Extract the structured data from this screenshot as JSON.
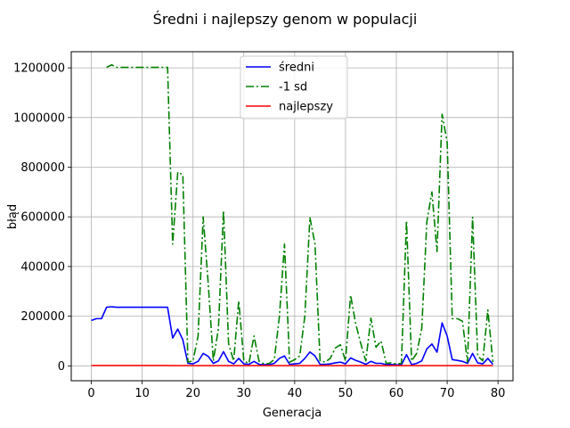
{
  "chart_data": {
    "type": "line",
    "title": "Średni i najlepszy genom w populacji",
    "xlabel": "Generacja",
    "ylabel": "błąd",
    "xlim": [
      -3.95,
      82.95
    ],
    "ylim": [
      -60000,
      1265000
    ],
    "xticks": [
      0,
      10,
      20,
      30,
      40,
      50,
      60,
      70,
      80
    ],
    "yticks": [
      0,
      200000,
      400000,
      600000,
      800000,
      1000000,
      1200000
    ],
    "grid": true,
    "legend_position": "top-center",
    "x": [
      0,
      1,
      2,
      3,
      4,
      5,
      6,
      7,
      8,
      9,
      10,
      11,
      12,
      13,
      14,
      15,
      16,
      17,
      18,
      19,
      20,
      21,
      22,
      23,
      24,
      25,
      26,
      27,
      28,
      29,
      30,
      31,
      32,
      33,
      34,
      35,
      36,
      37,
      38,
      39,
      40,
      41,
      42,
      43,
      44,
      45,
      46,
      47,
      48,
      49,
      50,
      51,
      52,
      53,
      54,
      55,
      56,
      57,
      58,
      59,
      60,
      61,
      62,
      63,
      64,
      65,
      66,
      67,
      68,
      69,
      70,
      71,
      72,
      73,
      74,
      75,
      76,
      77,
      78,
      79
    ],
    "series": [
      {
        "name": "średni",
        "color": "#0000ff",
        "style": "solid",
        "values": [
          183000,
          190000,
          190000,
          236000,
          238000,
          236000,
          236000,
          236000,
          236000,
          236000,
          236000,
          236000,
          236000,
          236000,
          236000,
          236000,
          112000,
          148000,
          105000,
          10000,
          8000,
          18000,
          50000,
          38000,
          10000,
          20000,
          57000,
          18000,
          8000,
          30000,
          8000,
          6000,
          18000,
          6000,
          5000,
          5000,
          10000,
          30000,
          40000,
          6000,
          8000,
          10000,
          30000,
          56000,
          40000,
          6000,
          6000,
          8000,
          12000,
          15000,
          8000,
          32000,
          22000,
          15000,
          6000,
          18000,
          10000,
          10000,
          5000,
          6000,
          4000,
          4000,
          45000,
          5000,
          10000,
          20000,
          68000,
          88000,
          55000,
          173000,
          120000,
          25000,
          22000,
          18000,
          10000,
          50000,
          12000,
          8000,
          30000,
          6000
        ]
      },
      {
        "name": "-1 sd",
        "color": "#008000",
        "style": "dashdot",
        "values": [
          null,
          null,
          null,
          1202000,
          1212000,
          1202000,
          1202000,
          1202000,
          1202000,
          1202000,
          1202000,
          1202000,
          1202000,
          1202000,
          1202000,
          1202000,
          490000,
          780000,
          770000,
          15000,
          20000,
          120000,
          600000,
          330000,
          20000,
          150000,
          625000,
          90000,
          20000,
          262000,
          20000,
          10000,
          120000,
          18000,
          8000,
          10000,
          25000,
          200000,
          490000,
          15000,
          25000,
          40000,
          200000,
          598000,
          490000,
          20000,
          15000,
          30000,
          72000,
          85000,
          20000,
          285000,
          170000,
          90000,
          20000,
          192000,
          75000,
          100000,
          10000,
          12000,
          8000,
          10000,
          585000,
          20000,
          50000,
          150000,
          580000,
          700000,
          460000,
          1013000,
          900000,
          190000,
          190000,
          180000,
          15000,
          598000,
          40000,
          20000,
          225000,
          15000
        ]
      },
      {
        "name": "najlepszy",
        "color": "#ff0000",
        "style": "solid",
        "values": [
          1500,
          1500,
          1500,
          1500,
          1500,
          1500,
          1500,
          1500,
          1500,
          1500,
          1500,
          1500,
          1500,
          1500,
          1500,
          1500,
          1000,
          1000,
          1000,
          1000,
          1000,
          1000,
          1000,
          1000,
          1000,
          1000,
          1000,
          1000,
          1000,
          1000,
          1000,
          1000,
          1000,
          1000,
          1000,
          1000,
          1000,
          1000,
          1000,
          1000,
          1000,
          1000,
          1000,
          1000,
          1000,
          1000,
          1000,
          1000,
          1000,
          1000,
          1000,
          1000,
          1000,
          1000,
          1000,
          1000,
          1000,
          1000,
          1000,
          1000,
          1000,
          1000,
          1000,
          1000,
          1000,
          1000,
          1000,
          1000,
          1000,
          1000,
          1000,
          1000,
          1000,
          1000,
          1000,
          1000,
          1000,
          1000,
          1000,
          1000
        ]
      }
    ]
  }
}
